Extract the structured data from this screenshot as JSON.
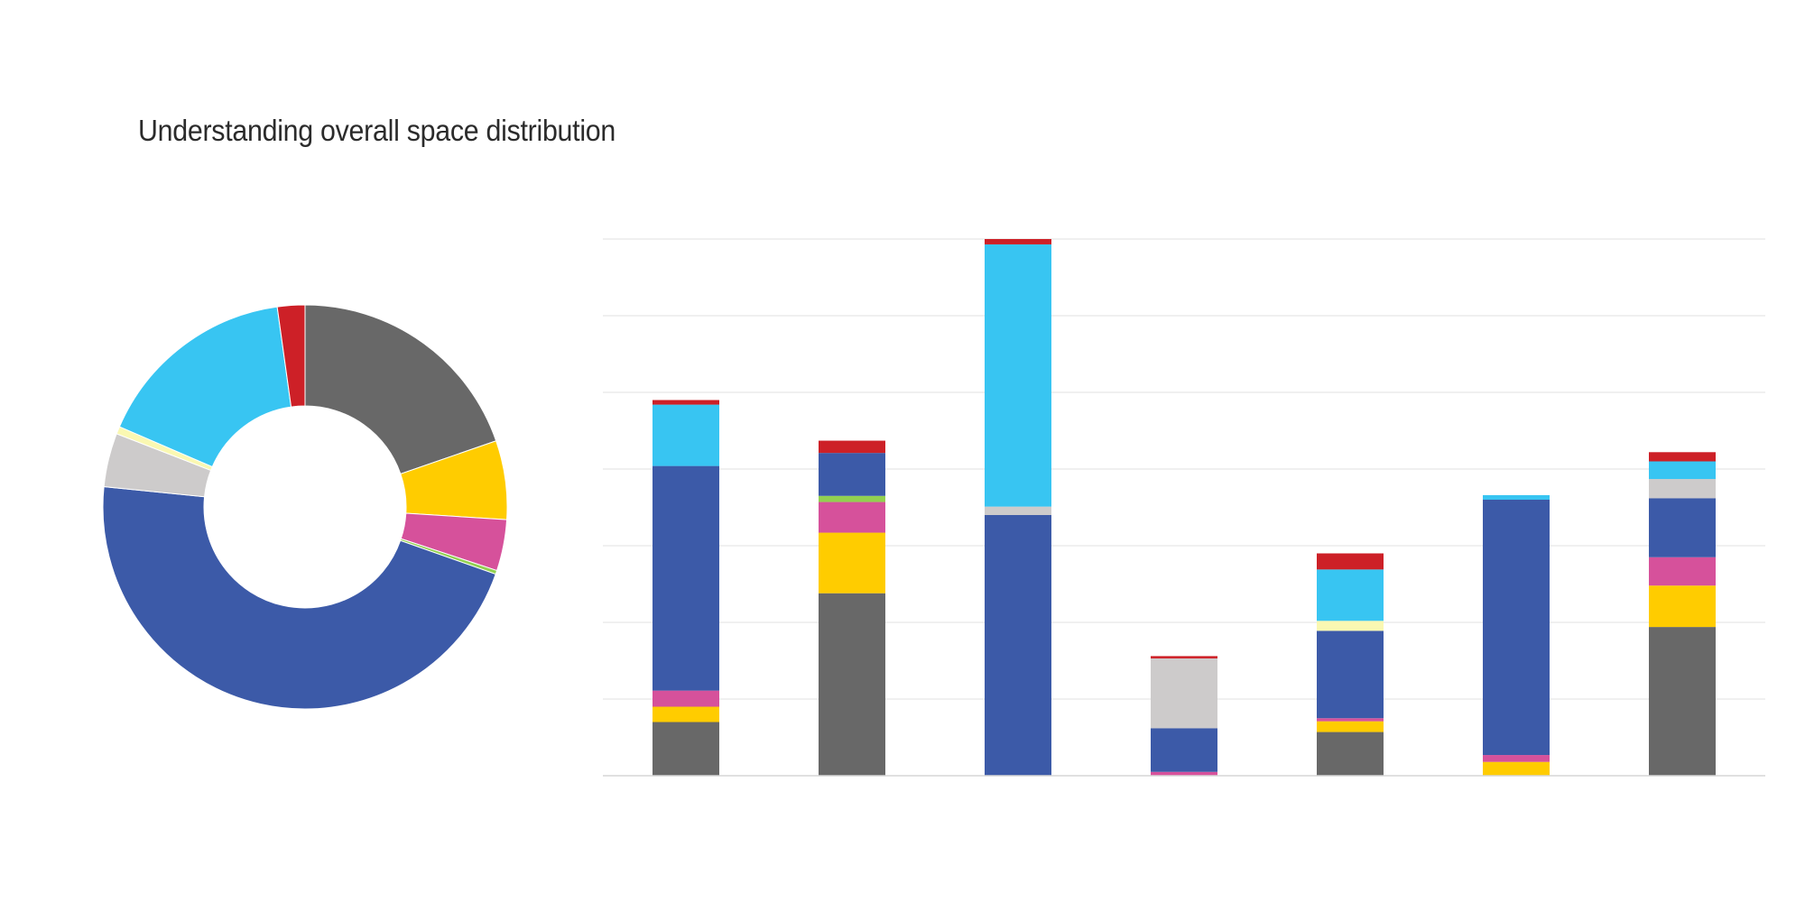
{
  "title": "Understanding overall space distribution",
  "colors": {
    "gray": "#686868",
    "yellow": "#FFCC00",
    "pink": "#D6519B",
    "green": "#92D050",
    "blue": "#3C5AA8",
    "lightgray": "#CDCBCB",
    "lightyellow": "#FAF8B2",
    "cyan": "#38C5F2",
    "red": "#CD2027",
    "grid": "#E6E6E6"
  },
  "chart_data": [
    {
      "type": "pie",
      "variant": "donut",
      "slices": [
        {
          "color_key": "gray",
          "value": 19.7
        },
        {
          "color_key": "yellow",
          "value": 6.3
        },
        {
          "color_key": "pink",
          "value": 4.1
        },
        {
          "color_key": "green",
          "value": 0.3
        },
        {
          "color_key": "blue",
          "value": 46.2
        },
        {
          "color_key": "lightgray",
          "value": 4.3
        },
        {
          "color_key": "lightyellow",
          "value": 0.6
        },
        {
          "color_key": "cyan",
          "value": 16.3
        },
        {
          "color_key": "red",
          "value": 2.2
        }
      ]
    },
    {
      "type": "bar",
      "stacked": true,
      "grid": true,
      "legend": "none",
      "ylim": [
        0,
        7
      ],
      "gridlines": [
        1,
        2,
        3,
        4,
        5,
        6,
        7
      ],
      "categories": [
        "",
        "",
        "",
        "",
        "",
        "",
        ""
      ],
      "series": [
        {
          "color_key": "gray",
          "values": [
            0.7,
            2.38,
            0,
            0,
            0.57,
            0,
            1.94
          ]
        },
        {
          "color_key": "yellow",
          "values": [
            0.2,
            0.79,
            0,
            0,
            0.14,
            0.18,
            0.54
          ]
        },
        {
          "color_key": "pink",
          "values": [
            0.21,
            0.4,
            0,
            0.05,
            0.04,
            0.09,
            0.37
          ]
        },
        {
          "color_key": "green",
          "values": [
            0,
            0.08,
            0,
            0,
            0,
            0,
            0
          ]
        },
        {
          "color_key": "blue",
          "values": [
            2.93,
            0.56,
            3.4,
            0.57,
            1.14,
            3.33,
            0.77
          ]
        },
        {
          "color_key": "lightgray",
          "values": [
            0,
            0,
            0.11,
            0.91,
            0,
            0,
            0.25
          ]
        },
        {
          "color_key": "lightyellow",
          "values": [
            0,
            0,
            0,
            0,
            0.13,
            0,
            0
          ]
        },
        {
          "color_key": "cyan",
          "values": [
            0.8,
            0,
            3.42,
            0,
            0.67,
            0.06,
            0.23
          ]
        },
        {
          "color_key": "red",
          "values": [
            0.06,
            0.16,
            0.07,
            0.03,
            0.21,
            0,
            0.12
          ]
        }
      ]
    }
  ]
}
